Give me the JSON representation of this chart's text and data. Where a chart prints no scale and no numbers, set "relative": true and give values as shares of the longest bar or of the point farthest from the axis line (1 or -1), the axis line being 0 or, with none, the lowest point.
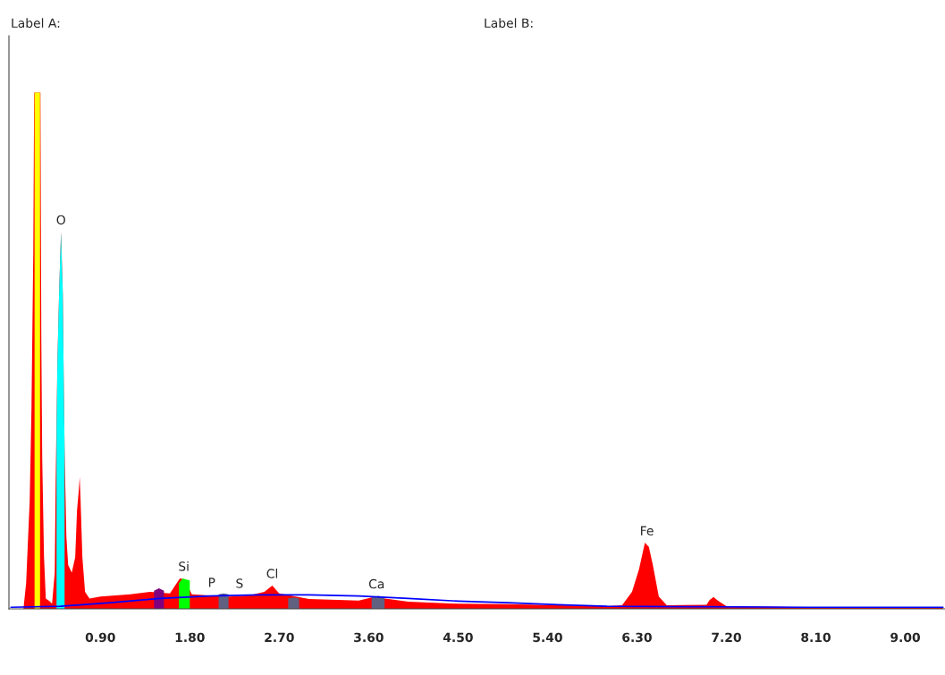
{
  "chart_data": {
    "type": "area",
    "relative": true,
    "xlim": [
      -0.02,
      9.4
    ],
    "xticks": [
      {
        "value": 0.9,
        "label": "0.90"
      },
      {
        "value": 1.8,
        "label": "1.80"
      },
      {
        "value": 2.7,
        "label": "2.70"
      },
      {
        "value": 3.6,
        "label": "3.60"
      },
      {
        "value": 4.5,
        "label": "4.50"
      },
      {
        "value": 5.4,
        "label": "5.40"
      },
      {
        "value": 6.3,
        "label": "6.30"
      },
      {
        "value": 7.2,
        "label": "7.20"
      },
      {
        "value": 8.1,
        "label": "8.10"
      },
      {
        "value": 9.0,
        "label": "9.00"
      }
    ],
    "tick_labels": "x",
    "grid": false,
    "legend": false,
    "series": [
      {
        "color": "#ff0000",
        "x": [
          0.126,
          0.153,
          0.189,
          0.207,
          0.225,
          0.234,
          0.297,
          0.306,
          0.315,
          0.333,
          0.351,
          0.387,
          0.414,
          0.441,
          0.45,
          0.468,
          0.486,
          0.504,
          0.522,
          0.531,
          0.54,
          0.558,
          0.576,
          0.612,
          0.647,
          0.665,
          0.683,
          0.692,
          0.701,
          0.719,
          0.746,
          0.791,
          0.9,
          1.2,
          1.4,
          1.6,
          1.7,
          1.75,
          1.82,
          2.0,
          2.2,
          2.4,
          2.55,
          2.63,
          2.7,
          3.0,
          3.5,
          3.65,
          4.0,
          4.5,
          5.0,
          5.5,
          6.0,
          6.15,
          6.25,
          6.32,
          6.38,
          6.42,
          6.46,
          6.52,
          6.6,
          7.0,
          7.03,
          7.07,
          7.12,
          7.2,
          8.0,
          9.0,
          9.38
        ],
        "values": [
          0,
          0.05,
          0.21,
          0.39,
          0.69,
          1.0,
          1.0,
          0.52,
          0.29,
          0.1,
          0.02,
          0.015,
          0.01,
          0.07,
          0.24,
          0.48,
          0.62,
          0.73,
          0.61,
          0.45,
          0.31,
          0.14,
          0.085,
          0.07,
          0.1,
          0.19,
          0.23,
          0.255,
          0.21,
          0.1,
          0.033,
          0.02,
          0.024,
          0.028,
          0.033,
          0.03,
          0.059,
          0.057,
          0.028,
          0.026,
          0.024,
          0.026,
          0.033,
          0.045,
          0.03,
          0.019,
          0.016,
          0.023,
          0.014,
          0.01,
          0.009,
          0.007,
          0.005,
          0.007,
          0.033,
          0.076,
          0.128,
          0.12,
          0.085,
          0.024,
          0.007,
          0.008,
          0.017,
          0.023,
          0.015,
          0.005,
          0.003,
          0.003,
          0.003
        ]
      },
      {
        "color": "#ffff00",
        "x": [
          0.238,
          0.293
        ],
        "values": [
          1.0,
          1.0
        ]
      },
      {
        "color": "#00ffff",
        "x": [
          0.459,
          0.468,
          0.486,
          0.504,
          0.522,
          0.531,
          0.54
        ],
        "values": [
          0.35,
          0.48,
          0.62,
          0.73,
          0.61,
          0.45,
          0.31
        ]
      },
      {
        "color": "#800080",
        "x": [
          1.44,
          1.49,
          1.54
        ],
        "values": [
          0.035,
          0.04,
          0.035
        ]
      },
      {
        "color": "#00ff00",
        "x": [
          1.69,
          1.73,
          1.76,
          1.8
        ],
        "values": [
          0.05,
          0.059,
          0.057,
          0.055
        ]
      },
      {
        "color": "#606080",
        "x": [
          2.09,
          2.14,
          2.19
        ],
        "values": [
          0.028,
          0.03,
          0.028
        ]
      },
      {
        "color": "#606080",
        "x": [
          2.79,
          2.85,
          2.9
        ],
        "values": [
          0.02,
          0.022,
          0.02
        ]
      },
      {
        "color": "#606080",
        "x": [
          3.63,
          3.7,
          3.76
        ],
        "values": [
          0.022,
          0.025,
          0.022
        ]
      },
      {
        "type": "line",
        "color": "#0000ff",
        "x": [
          0.0,
          0.5,
          1.0,
          1.5,
          2.0,
          2.5,
          3.0,
          3.5,
          4.0,
          4.5,
          5.0,
          5.5,
          6.0,
          7.0,
          8.0,
          9.38
        ],
        "values": [
          0.003,
          0.005,
          0.012,
          0.02,
          0.025,
          0.027,
          0.027,
          0.025,
          0.02,
          0.015,
          0.012,
          0.008,
          0.005,
          0.004,
          0.003,
          0.003
        ]
      }
    ],
    "annotations": [
      "Label A:",
      "Label B:",
      {
        "text": "O",
        "x": 0.504,
        "y": 0.73
      },
      {
        "text": "Si",
        "x": 1.74,
        "y": 0.059
      },
      {
        "text": "P",
        "x": 2.02,
        "y": 0.028
      },
      {
        "text": "S",
        "x": 2.3,
        "y": 0.026
      },
      {
        "text": "Cl",
        "x": 2.63,
        "y": 0.045
      },
      {
        "text": "Ca",
        "x": 3.68,
        "y": 0.025
      },
      {
        "text": "Fe",
        "x": 6.4,
        "y": 0.128
      }
    ]
  }
}
